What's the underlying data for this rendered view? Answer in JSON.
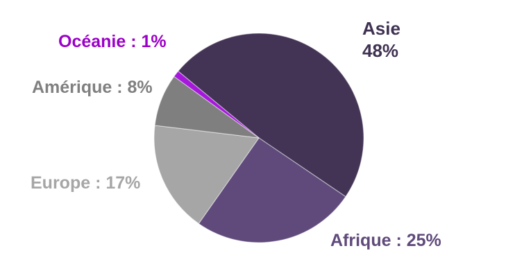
{
  "background_color": "#FFFFFF",
  "chart_data": {
    "type": "pie",
    "title": "",
    "legend": "none",
    "labels_style": "callout labels around pie, colored to match slices",
    "direction": "clockwise",
    "start_angle_deg": -50.4,
    "slices": [
      {
        "id": "asie",
        "name": "Asie",
        "value": 48,
        "color": "#433456",
        "label_color": "#3F3152",
        "callout_lines": [
          "Asie",
          "48%"
        ]
      },
      {
        "id": "afrique",
        "name": "Afrique",
        "value": 25,
        "color": "#5F4A7B",
        "label_color": "#5F4A7B",
        "callout": "Afrique : 25%"
      },
      {
        "id": "europe",
        "name": "Europe",
        "value": 17,
        "color": "#A6A6A6",
        "label_color": "#A6A6A6",
        "callout": "Europe : 17%"
      },
      {
        "id": "amerique",
        "name": "Amérique",
        "value": 8,
        "color": "#7F7F7F",
        "label_color": "#808080",
        "callout": "Amérique : 8%"
      },
      {
        "id": "oceanie",
        "name": "Océanie",
        "value": 1,
        "color": "#A617DC",
        "label_color": "#9C00C8",
        "callout": "Océanie : 1%"
      }
    ],
    "slice_border_color": "rgba(255,255,255,0.45)"
  }
}
